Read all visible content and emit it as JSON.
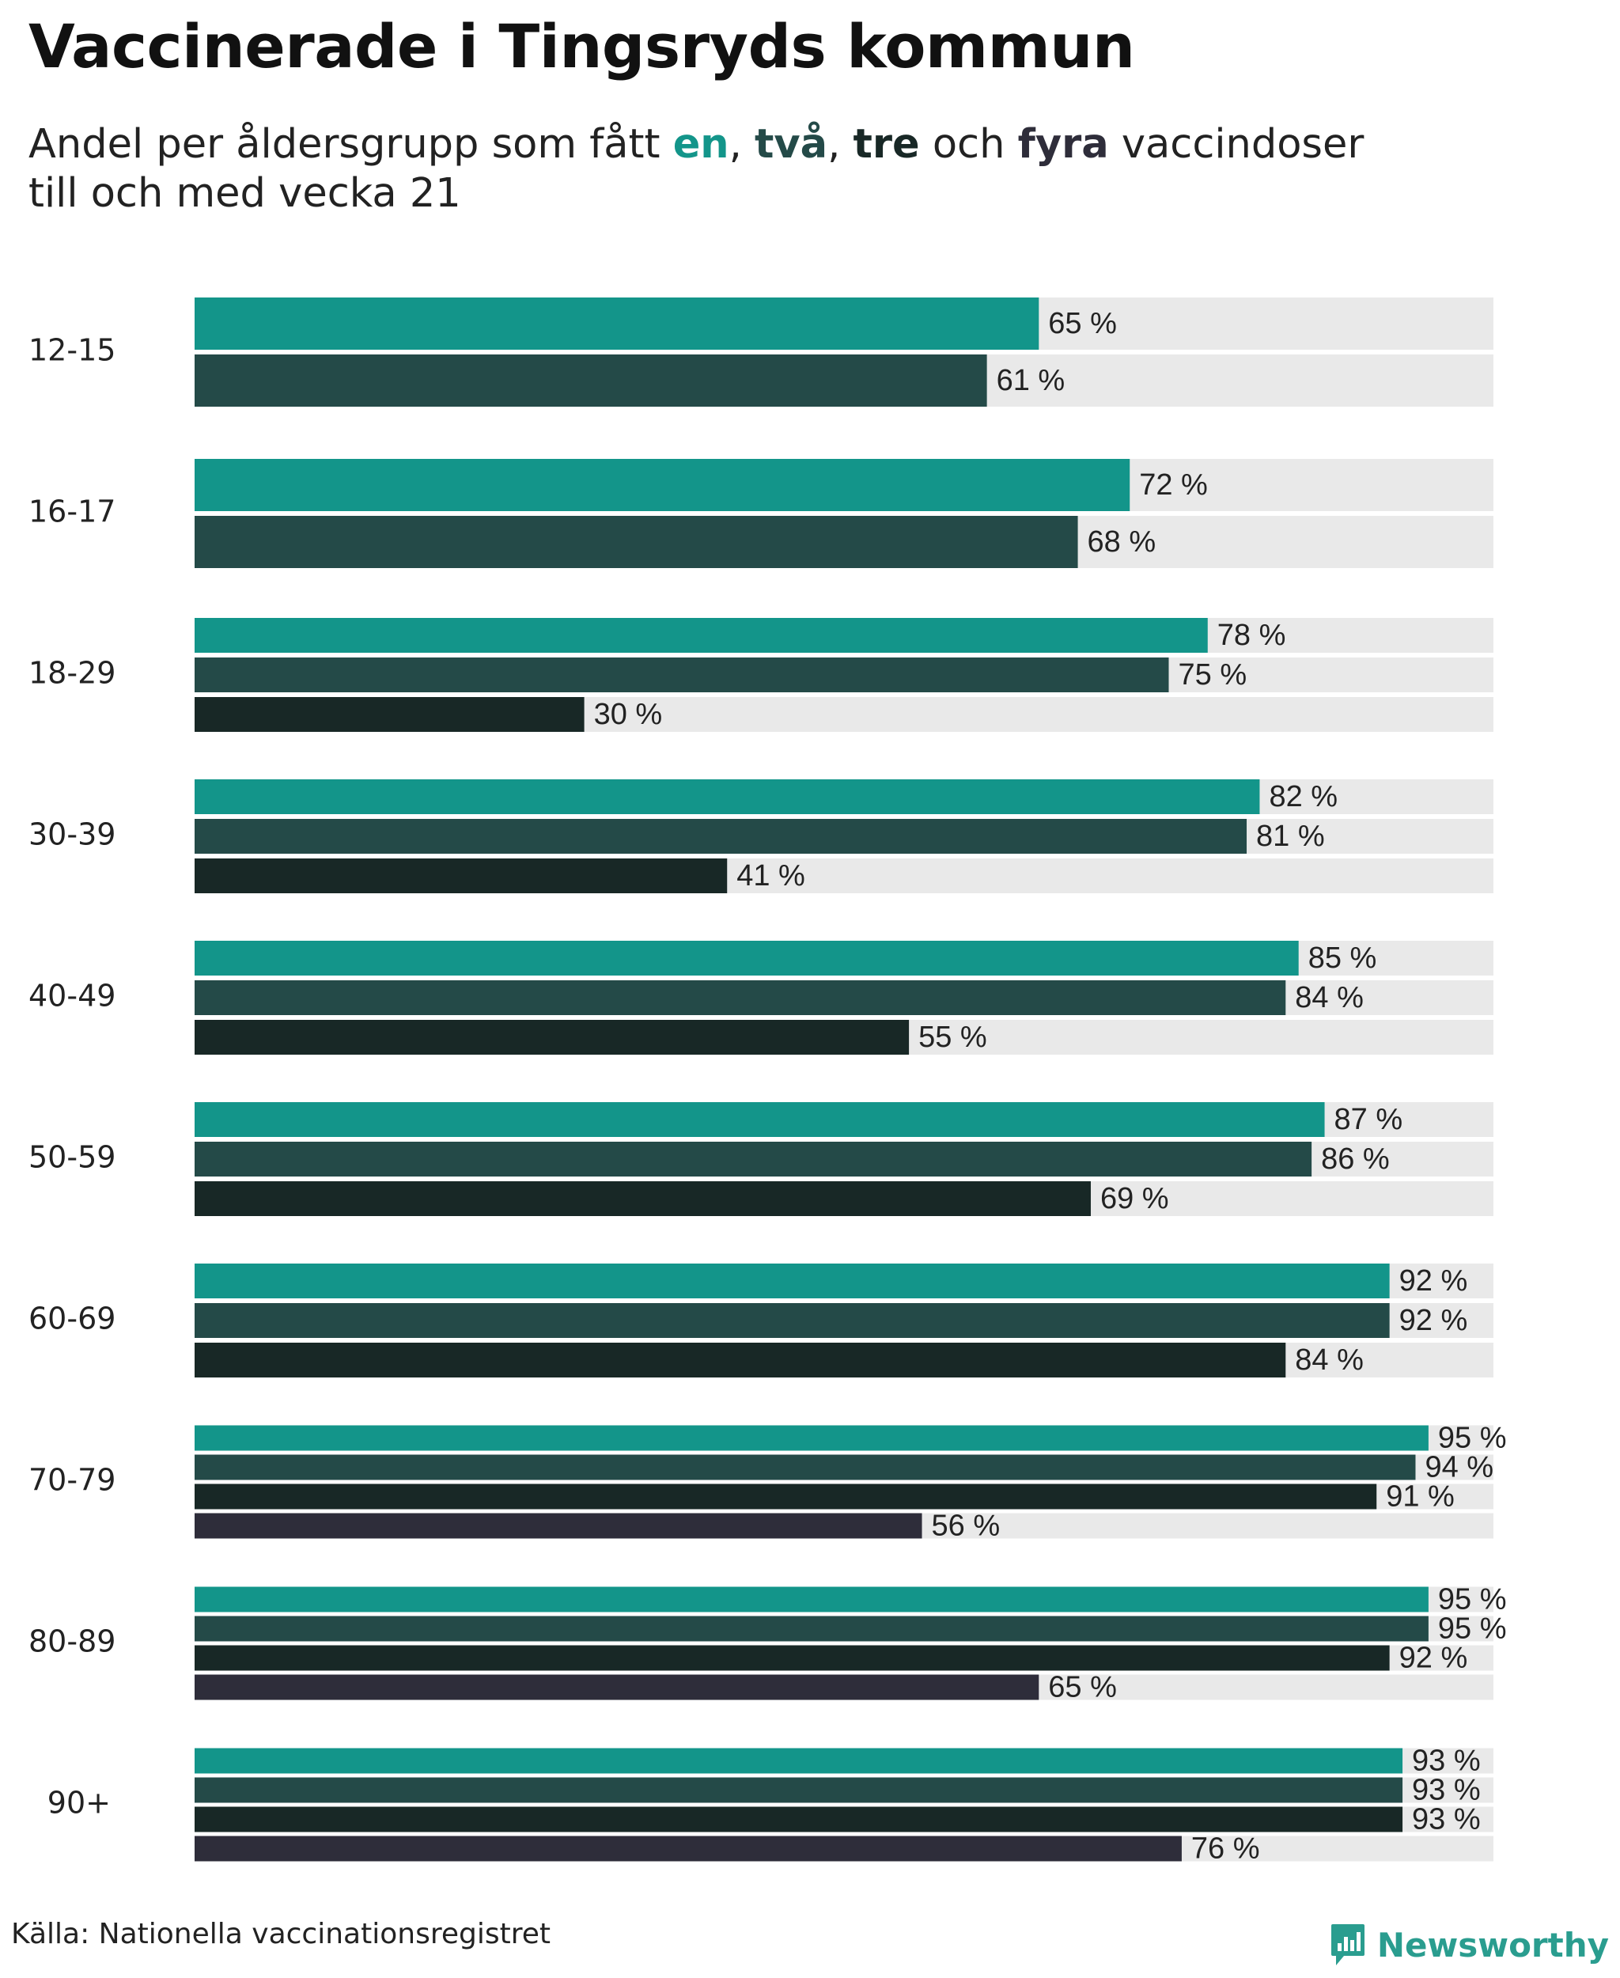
{
  "title": "Vaccinerade i Tingsryds kommun",
  "subtitle": {
    "pre": "Andel per åldersgrupp som fått ",
    "en": "en",
    "sep1": ", ",
    "tva": "två",
    "sep2": ", ",
    "tre": "tre",
    "och": " och ",
    "fyra": "fyra",
    "post": " vaccindoser",
    "line2": "till och med vecka 21"
  },
  "colors": {
    "en": "#13958a",
    "tva": "#244a48",
    "tre": "#182826",
    "fyra": "#2e2d3a",
    "track": "#e9e9e9",
    "brand": "#2a9d8f"
  },
  "chart_data": {
    "type": "bar",
    "orientation": "horizontal",
    "unit": "%",
    "xlim": [
      0,
      100
    ],
    "categories": [
      "12-15",
      "16-17",
      "18-29",
      "30-39",
      "40-49",
      "50-59",
      "60-69",
      "70-79",
      "80-89",
      "90+"
    ],
    "series": [
      {
        "name": "en",
        "values": [
          65,
          72,
          78,
          82,
          85,
          87,
          92,
          95,
          95,
          93
        ]
      },
      {
        "name": "två",
        "values": [
          61,
          68,
          75,
          81,
          84,
          86,
          92,
          94,
          95,
          93
        ]
      },
      {
        "name": "tre",
        "values": [
          null,
          null,
          30,
          41,
          55,
          69,
          84,
          91,
          92,
          93
        ]
      },
      {
        "name": "fyra",
        "values": [
          null,
          null,
          null,
          null,
          null,
          null,
          null,
          56,
          65,
          76
        ]
      }
    ]
  },
  "source": "Källa: Nationella vaccinationsregistret",
  "brand": {
    "name": "Newsworthy",
    "icon": "newsworthy-logo-icon"
  }
}
